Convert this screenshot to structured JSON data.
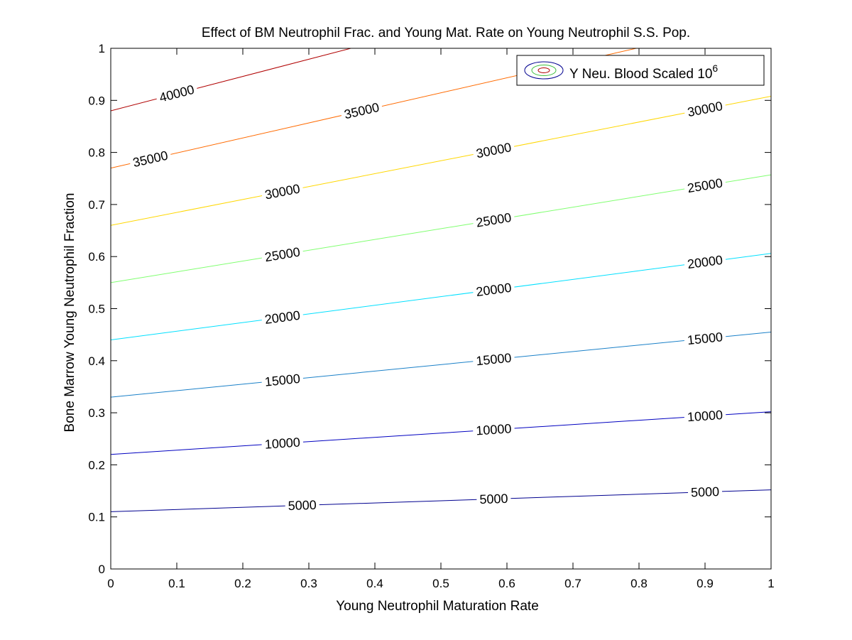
{
  "chart_data": {
    "type": "contour",
    "title": "Effect of BM Neutrophil Frac. and Young Mat. Rate on Young Neutrophil S.S. Pop.",
    "xlabel": "Young Neutrophil Maturation Rate",
    "ylabel": "Bone Marrow Young Neutrophil Fraction",
    "xlim": [
      0,
      1
    ],
    "ylim": [
      0,
      1
    ],
    "xticks": [
      "0",
      "0.1",
      "0.2",
      "0.3",
      "0.4",
      "0.5",
      "0.6",
      "0.7",
      "0.8",
      "0.9",
      "1"
    ],
    "yticks": [
      "0",
      "0.1",
      "0.2",
      "0.3",
      "0.4",
      "0.5",
      "0.6",
      "0.7",
      "0.8",
      "0.9",
      "1"
    ],
    "grid": false,
    "legend": {
      "position": "top-right",
      "label_main": "Y Neu. Blood Scaled 10",
      "label_sup": "6"
    },
    "contours": [
      {
        "level": 5000,
        "label": "5000",
        "color": "#00008f",
        "y_at_x0": 0.11,
        "y_at_x1": 0.152,
        "label_x": [
          0.29,
          0.58,
          0.9
        ]
      },
      {
        "level": 10000,
        "label": "10000",
        "color": "#0000c0",
        "y_at_x0": 0.22,
        "y_at_x1": 0.302,
        "label_x": [
          0.26,
          0.58,
          0.9
        ]
      },
      {
        "level": 15000,
        "label": "15000",
        "color": "#1a80c8",
        "y_at_x0": 0.33,
        "y_at_x1": 0.455,
        "label_x": [
          0.26,
          0.58,
          0.9
        ]
      },
      {
        "level": 20000,
        "label": "20000",
        "color": "#00e0ff",
        "y_at_x0": 0.44,
        "y_at_x1": 0.606,
        "label_x": [
          0.26,
          0.58,
          0.9
        ]
      },
      {
        "level": 25000,
        "label": "25000",
        "color": "#80ff70",
        "y_at_x0": 0.55,
        "y_at_x1": 0.757,
        "label_x": [
          0.26,
          0.58,
          0.9
        ]
      },
      {
        "level": 30000,
        "label": "30000",
        "color": "#ffd700",
        "y_at_x0": 0.66,
        "y_at_x1": 0.908,
        "label_x": [
          0.26,
          0.58,
          0.9
        ]
      },
      {
        "level": 35000,
        "label": "35000",
        "color": "#ff6a00",
        "y_at_x0": 0.77,
        "y_at_x1": 1.059,
        "label_x": [
          0.06,
          0.38
        ]
      },
      {
        "level": 40000,
        "label": "40000",
        "color": "#b00000",
        "y_at_x0": 0.88,
        "y_at_x1": 1.21,
        "label_x": [
          0.1
        ]
      }
    ]
  }
}
